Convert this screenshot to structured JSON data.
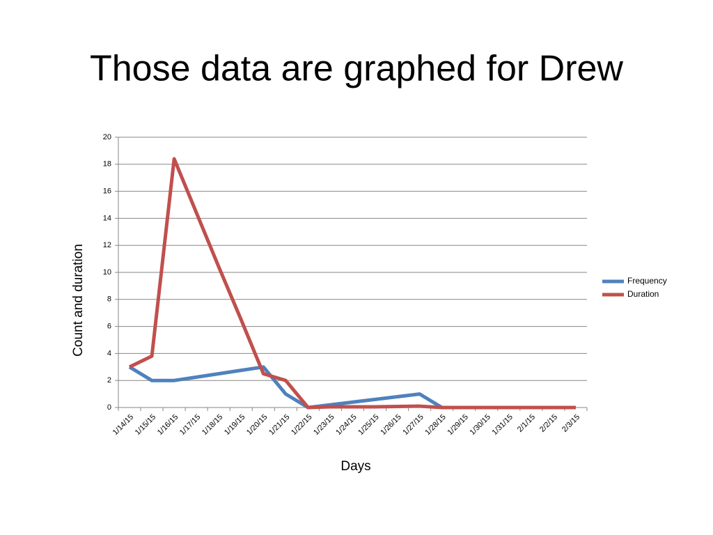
{
  "chart_data": {
    "type": "line",
    "title": "Those data are graphed for Drew",
    "x_label": "Days",
    "y_label": "Count and duration",
    "categories": [
      "1/14/15",
      "1/15/15",
      "1/16/15",
      "1/17/15",
      "1/18/15",
      "1/19/15",
      "1/20/15",
      "1/21/15",
      "1/22/15",
      "1/23/15",
      "1/24/15",
      "1/25/15",
      "1/26/15",
      "1/27/15",
      "1/28/15",
      "1/29/15",
      "1/30/15",
      "1/31/15",
      "2/1/15",
      "2/2/15",
      "2/3/15"
    ],
    "series": [
      {
        "name": "Frequency",
        "color": "#4f81bd",
        "values": [
          3,
          2,
          2,
          2.25,
          2.5,
          2.75,
          3,
          1,
          0,
          0.2,
          0.4,
          0.6,
          0.8,
          1,
          0,
          0,
          0,
          0,
          0,
          0,
          0
        ]
      },
      {
        "name": "Duration",
        "color": "#c0504d",
        "values": [
          3,
          3.8,
          18.4,
          14.4,
          10.4,
          6.5,
          2.5,
          2,
          0,
          0.05,
          0.05,
          0.05,
          0.08,
          0.1,
          0,
          0,
          0,
          0,
          0,
          0,
          0
        ]
      }
    ],
    "ylim": [
      0,
      20
    ],
    "yticks": [
      0,
      2,
      4,
      6,
      8,
      10,
      12,
      14,
      16,
      18,
      20
    ],
    "grid": true,
    "legend": "right"
  }
}
